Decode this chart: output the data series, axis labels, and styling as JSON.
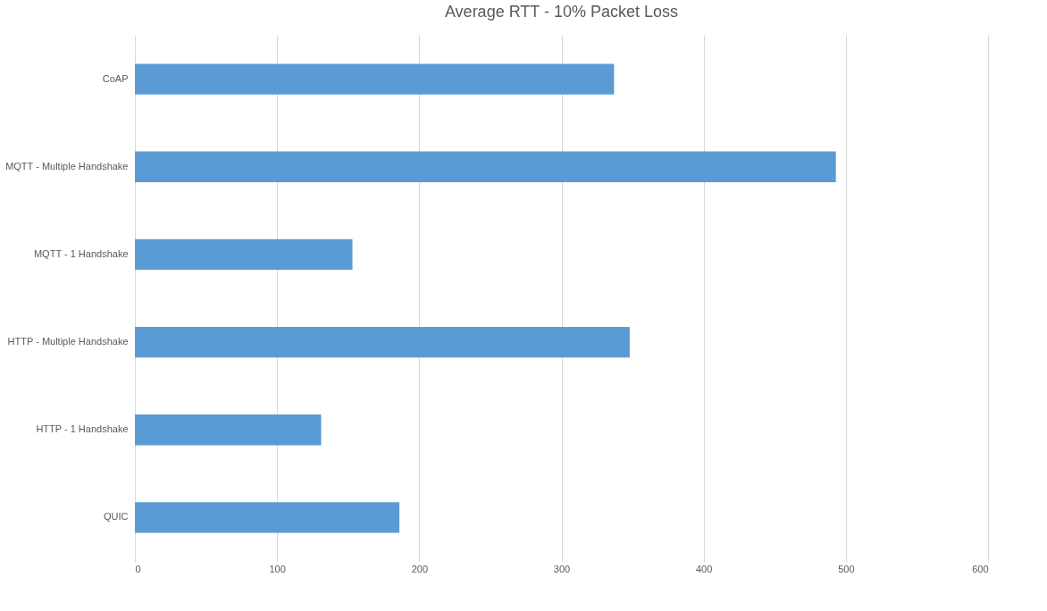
{
  "chart_data": {
    "type": "bar",
    "orientation": "horizontal",
    "title": "Average RTT - 10% Packet Loss",
    "categories": [
      "CoAP",
      "MQTT - Multiple Handshake",
      "MQTT - 1 Handshake",
      "HTTP - Multiple Handshake",
      "HTTP - 1 Handshake",
      "QUIC"
    ],
    "values": [
      337,
      493,
      153,
      348,
      131,
      186
    ],
    "color": "#5b9bd5",
    "xlim": [
      0,
      600
    ],
    "xticks": [
      0,
      100,
      200,
      300,
      400,
      500,
      600
    ],
    "grid": "x"
  }
}
